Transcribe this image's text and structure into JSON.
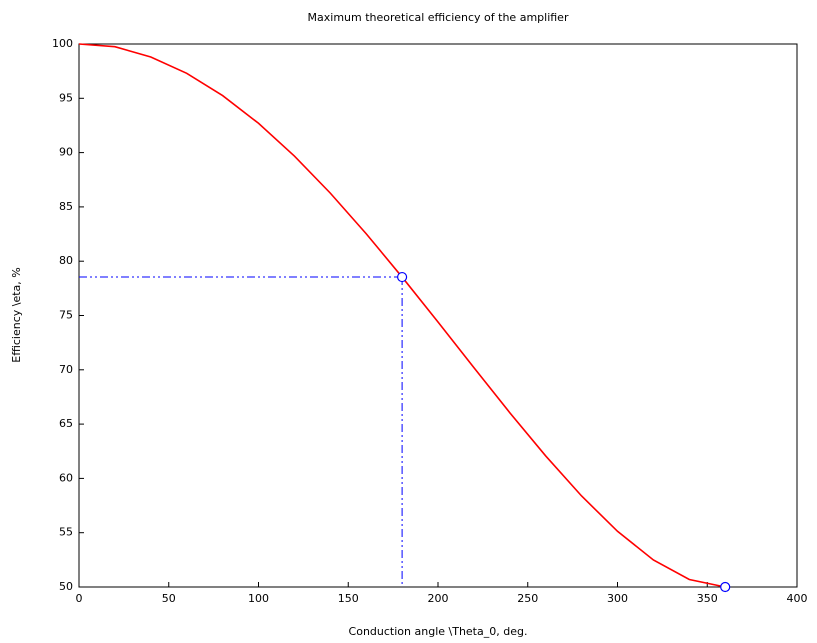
{
  "chart_data": {
    "type": "line",
    "title": "Maximum theoretical efficiency of the amplifier",
    "x_label": "Conduction angle \\Theta_0, deg.",
    "y_label": "Efficiency \\eta, %",
    "x": [
      0,
      20,
      40,
      60,
      80,
      100,
      120,
      140,
      160,
      180,
      200,
      220,
      240,
      260,
      280,
      300,
      320,
      340,
      360
    ],
    "series": [
      {
        "color": "#ff0000",
        "values": [
          100,
          99.75,
          98.8,
          97.3,
          95.25,
          92.7,
          89.68,
          86.27,
          82.53,
          78.54,
          74.4,
          70.2,
          66.05,
          62.07,
          58.38,
          55.13,
          52.49,
          50.69,
          50
        ]
      }
    ],
    "points": {
      "color": "#0000ff",
      "x": [
        180,
        360
      ],
      "y": [
        78.54,
        50
      ]
    },
    "xlim": [
      0,
      400
    ],
    "xticks": [
      0,
      50,
      100,
      150,
      200,
      250,
      300,
      350,
      400
    ],
    "ylim": [
      50,
      100
    ],
    "yticks": [
      50,
      55,
      60,
      65,
      70,
      75,
      80,
      85,
      90,
      95,
      100
    ],
    "grid": false
  }
}
